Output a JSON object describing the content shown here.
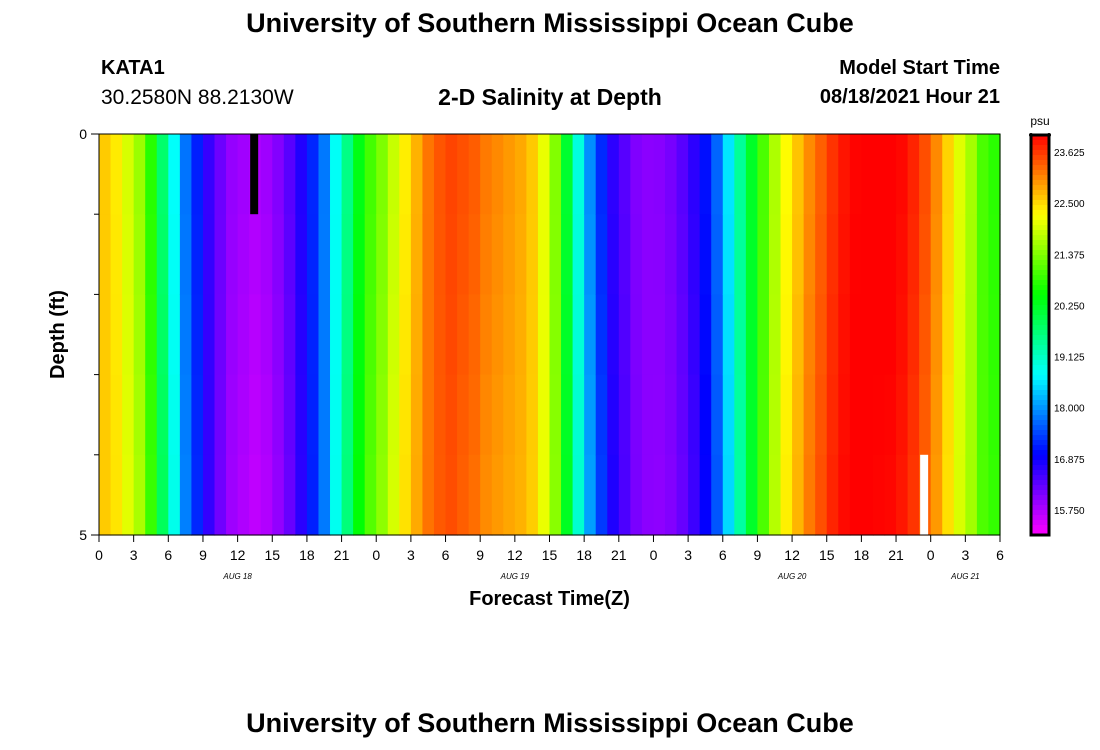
{
  "header": {
    "title": "University of Southern Mississippi Ocean Cube",
    "station_id": "KATA1",
    "coords": "30.2580N  88.2130W",
    "chart_title": "2-D Salinity at Depth",
    "model_label": "Model Start Time",
    "model_time": "08/18/2021 Hour 21"
  },
  "footer": {
    "title": "University of Southern Mississippi Ocean Cube"
  },
  "chart_data": {
    "type": "heatmap",
    "title": "2-D Salinity at Depth",
    "xlabel": "Forecast Time(Z)",
    "ylabel": "Depth (ft)",
    "x_range": [
      0,
      78
    ],
    "y_range": [
      0,
      5
    ],
    "y_ticks": [
      "0",
      "5"
    ],
    "x_tick_values": [
      0,
      3,
      6,
      9,
      12,
      15,
      18,
      21,
      24,
      27,
      30,
      33,
      36,
      39,
      42,
      45,
      48,
      51,
      54,
      57,
      60,
      63,
      66,
      69,
      72,
      75,
      78
    ],
    "x_tick_labels": [
      "0",
      "3",
      "6",
      "9",
      "12",
      "15",
      "18",
      "21",
      "0",
      "3",
      "6",
      "9",
      "12",
      "15",
      "18",
      "21",
      "0",
      "3",
      "6",
      "9",
      "12",
      "15",
      "18",
      "21",
      "0",
      "3",
      "6"
    ],
    "date_labels": [
      {
        "label": "AUG 18",
        "at": 12
      },
      {
        "label": "AUG 19",
        "at": 36
      },
      {
        "label": "AUG 20",
        "at": 60
      },
      {
        "label": "AUG 21",
        "at": 75
      }
    ],
    "colorbar": {
      "unit": "psu",
      "min": 15.2,
      "max": 24.0,
      "tick_labels": [
        "15.750",
        "16.875",
        "18.000",
        "19.125",
        "20.250",
        "21.375",
        "22.500",
        "23.625"
      ],
      "tick_values": [
        15.75,
        16.875,
        18.0,
        19.125,
        20.25,
        21.375,
        22.5,
        23.625
      ]
    },
    "hours": [
      0,
      1,
      2,
      3,
      4,
      5,
      6,
      7,
      8,
      9,
      10,
      11,
      12,
      13,
      14,
      15,
      16,
      17,
      18,
      19,
      20,
      21,
      22,
      23,
      24,
      25,
      26,
      27,
      28,
      29,
      30,
      31,
      32,
      33,
      34,
      35,
      36,
      37,
      38,
      39,
      40,
      41,
      42,
      43,
      44,
      45,
      46,
      47,
      48,
      49,
      50,
      51,
      52,
      53,
      54,
      55,
      56,
      57,
      58,
      59,
      60,
      61,
      62,
      63,
      64,
      65,
      66,
      67,
      68,
      69,
      70,
      71,
      72,
      73,
      74,
      75,
      76,
      77
    ],
    "salinity": [
      22.6,
      22.4,
      22.0,
      21.6,
      20.8,
      19.8,
      18.8,
      17.8,
      17.2,
      16.6,
      16.2,
      15.9,
      15.8,
      15.7,
      15.8,
      16.0,
      16.3,
      16.7,
      17.2,
      17.8,
      18.8,
      19.6,
      20.4,
      21.0,
      21.4,
      21.9,
      22.4,
      22.8,
      23.2,
      23.4,
      23.5,
      23.4,
      23.3,
      23.1,
      23.0,
      22.9,
      22.8,
      22.6,
      22.1,
      21.4,
      20.2,
      19.0,
      18.0,
      17.3,
      16.7,
      16.4,
      16.1,
      16.0,
      16.0,
      16.1,
      16.3,
      16.6,
      17.0,
      17.6,
      18.5,
      19.4,
      20.2,
      21.0,
      21.7,
      22.3,
      22.7,
      23.1,
      23.4,
      23.7,
      23.9,
      24.0,
      24.0,
      24.0,
      24.0,
      23.9,
      23.7,
      23.4,
      23.0,
      22.5,
      22.0,
      21.6,
      21.0,
      20.8
    ],
    "markers": [
      {
        "color": "#000000",
        "hour": 13,
        "depth_from": 0,
        "depth_to": 1
      },
      {
        "color": "#ffffff",
        "hour": 71,
        "depth_from": 4,
        "depth_to": 5
      }
    ]
  }
}
